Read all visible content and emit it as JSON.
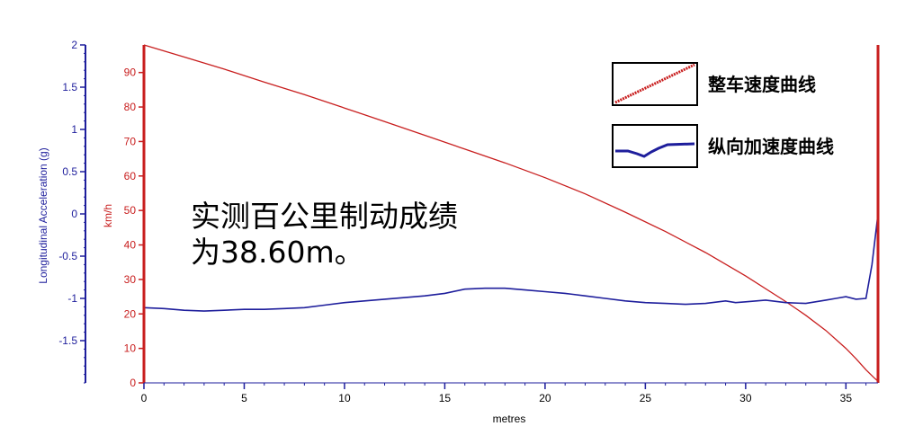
{
  "chart_data": {
    "type": "line",
    "xlabel": "metres",
    "xlim": [
      0,
      36.6
    ],
    "xticks": [
      0,
      5,
      10,
      15,
      20,
      25,
      30,
      35
    ],
    "left_axis": {
      "label": "Longitudinal Acceleration (g)",
      "ylim": [
        -2,
        2
      ],
      "ticks": [
        2,
        1.5,
        1,
        0.5,
        0,
        -0.5,
        -1,
        -1.5
      ],
      "color": "#1e1e9c"
    },
    "right_axis": {
      "label": "km/h",
      "ylim": [
        0,
        98
      ],
      "ticks": [
        90,
        80,
        70,
        60,
        50,
        40,
        30,
        20,
        10,
        0
      ],
      "color": "#c81e1e"
    },
    "series": [
      {
        "name": "整车速度曲线",
        "axis": "right",
        "color": "#c81e1e",
        "x": [
          0,
          2,
          4,
          6,
          8,
          10,
          12,
          14,
          16,
          18,
          20,
          22,
          24,
          26,
          28,
          30,
          32,
          33,
          34,
          35,
          35.5,
          36,
          36.4,
          36.6
        ],
        "y": [
          98,
          94.5,
          91,
          87.2,
          83.6,
          79.7,
          75.8,
          71.8,
          67.8,
          63.8,
          59.5,
          54.8,
          49.5,
          43.9,
          37.8,
          31,
          23.6,
          19.6,
          15.2,
          10,
          7,
          3.8,
          1.5,
          0.5
        ]
      },
      {
        "name": "纵向加速度曲线",
        "axis": "left",
        "color": "#1e1e9c",
        "x": [
          0,
          1,
          2,
          3,
          4,
          5,
          6,
          7,
          8,
          9,
          10,
          11,
          12,
          13,
          14,
          15,
          16,
          17,
          18,
          19,
          20,
          21,
          22,
          23,
          24,
          25,
          26,
          27,
          28,
          29,
          29.5,
          30,
          31,
          32,
          33,
          34,
          34.5,
          35,
          35.5,
          36,
          36.3,
          36.6
        ],
        "y": [
          -1.11,
          -1.12,
          -1.14,
          -1.15,
          -1.14,
          -1.13,
          -1.13,
          -1.12,
          -1.11,
          -1.08,
          -1.05,
          -1.03,
          -1.01,
          -0.99,
          -0.97,
          -0.94,
          -0.89,
          -0.88,
          -0.88,
          -0.9,
          -0.92,
          -0.94,
          -0.97,
          -1,
          -1.03,
          -1.05,
          -1.06,
          -1.07,
          -1.06,
          -1.03,
          -1.05,
          -1.04,
          -1.02,
          -1.05,
          -1.06,
          -1.02,
          -1,
          -0.98,
          -1.01,
          -1,
          -0.6,
          0.0
        ]
      }
    ],
    "legend": {
      "placement": "top-right",
      "entries": [
        "整车速度曲线",
        "纵向加速度曲线"
      ]
    },
    "annotation": {
      "line1": "实测百公里制动成绩",
      "line2": "为38.60m。"
    }
  }
}
